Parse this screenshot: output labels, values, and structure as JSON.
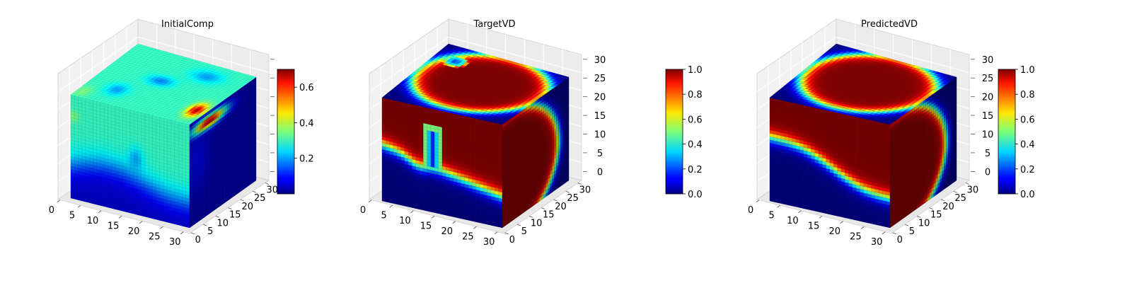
{
  "figure": {
    "colormap": "jet",
    "background": "#ffffff",
    "pane_colors": [
      "#f2f2f2",
      "#e8e8e8",
      "#ececec"
    ]
  },
  "chart_data": [
    {
      "type": "heatmap",
      "subtype": "3d-voxel",
      "title": "InitialComp",
      "axes": {
        "x": {
          "ticks": [
            "0",
            "5",
            "10",
            "15",
            "20",
            "25",
            "30"
          ],
          "range": [
            0,
            32
          ]
        },
        "y": {
          "ticks": [
            "0",
            "5",
            "10",
            "15",
            "20",
            "25",
            "30"
          ],
          "range": [
            0,
            32
          ]
        },
        "z": {
          "ticks": [],
          "range": [
            0,
            32
          ]
        }
      },
      "colorbar": {
        "ticks": [
          "0.2",
          "0.4",
          "0.6"
        ],
        "range": [
          0.0,
          0.7
        ]
      },
      "field": {
        "description_values": "Top face mostly ~0.3 with darker patches ~0.15; front face ~0.3 down to z≈8, below ~0.05; right face dark with a red (~0.65) elongated spot near the top-right edge",
        "top_value": 0.3,
        "bottom_value": 0.05,
        "hot_spot_value": 0.65
      }
    },
    {
      "type": "heatmap",
      "subtype": "3d-voxel",
      "title": "TargetVD",
      "axes": {
        "x": {
          "ticks": [
            "0",
            "5",
            "10",
            "15",
            "20",
            "25",
            "30"
          ],
          "range": [
            0,
            32
          ]
        },
        "y": {
          "ticks": [
            "0",
            "5",
            "10",
            "15",
            "20",
            "25",
            "30"
          ],
          "range": [
            0,
            32
          ]
        },
        "z": {
          "ticks": [
            "0",
            "5",
            "10",
            "15",
            "20",
            "25",
            "30"
          ],
          "range": [
            0,
            32
          ]
        }
      },
      "colorbar": {
        "ticks": [
          "0.0",
          "0.2",
          "0.4",
          "0.6",
          "0.8",
          "1.0"
        ],
        "range": [
          0.0,
          1.0
        ]
      },
      "field": {
        "inside_value": 1.0,
        "outside_value": 0.0,
        "interface_value": 0.5
      }
    },
    {
      "type": "heatmap",
      "subtype": "3d-voxel",
      "title": "PredictedVD",
      "axes": {
        "x": {
          "ticks": [
            "0",
            "5",
            "10",
            "15",
            "20",
            "25",
            "30"
          ],
          "range": [
            0,
            32
          ]
        },
        "y": {
          "ticks": [
            "0",
            "5",
            "10",
            "15",
            "20",
            "25",
            "30"
          ],
          "range": [
            0,
            32
          ]
        },
        "z": {
          "ticks": [
            "0",
            "5",
            "10",
            "15",
            "20",
            "25",
            "30"
          ],
          "range": [
            0,
            32
          ]
        }
      },
      "colorbar": {
        "ticks": [
          "0.0",
          "0.2",
          "0.4",
          "0.6",
          "0.8",
          "1.0"
        ],
        "range": [
          0.0,
          1.0
        ]
      },
      "field": {
        "inside_value": 1.0,
        "outside_value": 0.0,
        "interface_value": 0.5
      }
    }
  ]
}
